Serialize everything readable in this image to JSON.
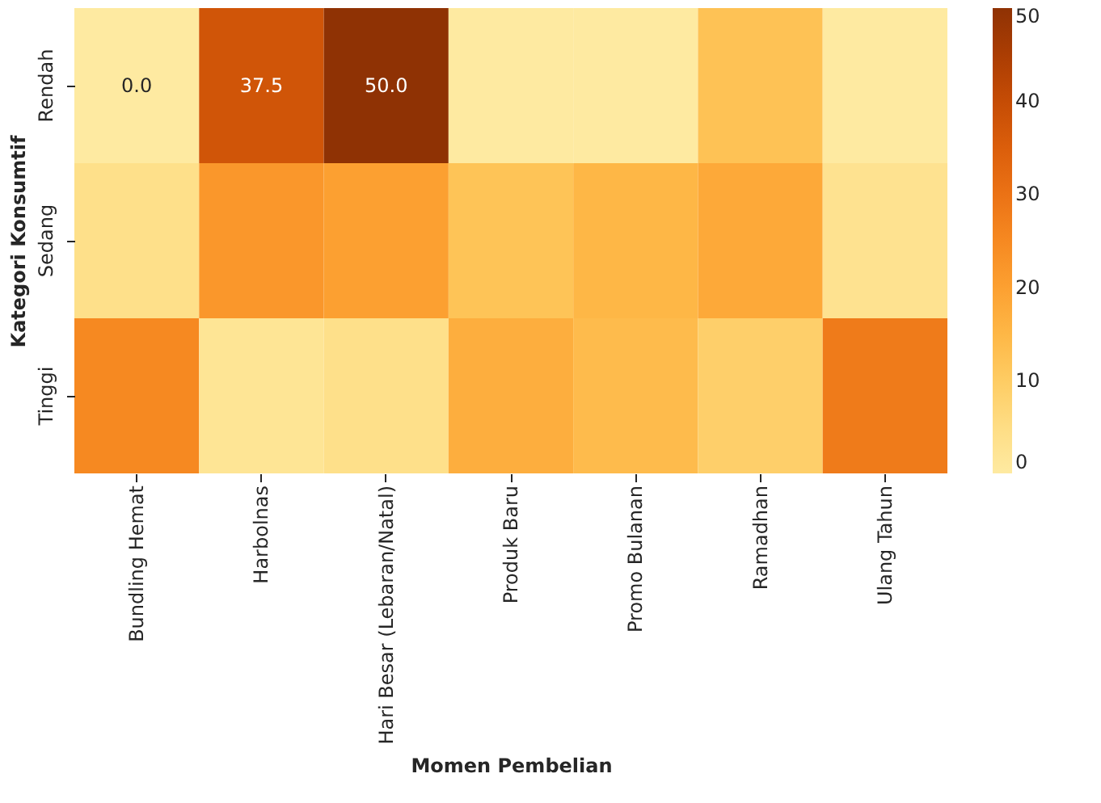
{
  "chart_data": {
    "type": "heatmap",
    "xlabel": "Momen Pembelian",
    "ylabel": "Kategori Konsumtif",
    "categories": [
      "Bundling Hemat",
      "Harbolnas",
      "Hari Besar (Lebaran/Natal)",
      "Produk Baru",
      "Promo Bulanan",
      "Ramadhan",
      "Ulang Tahun"
    ],
    "y_categories": [
      "Rendah",
      "Sedang",
      "Tinggi"
    ],
    "cells": [
      [
        0.0,
        37.5,
        50.0,
        0,
        0,
        12.5,
        0
      ],
      [
        4,
        22,
        20,
        12,
        15,
        18,
        3
      ],
      [
        25,
        2,
        4,
        17,
        14,
        9,
        28
      ]
    ],
    "cell_labels": [
      [
        "0.0",
        "37.5",
        "50.0",
        null,
        null,
        null,
        null
      ],
      [
        null,
        null,
        null,
        null,
        null,
        null,
        null
      ],
      [
        null,
        null,
        null,
        null,
        null,
        null,
        null
      ]
    ],
    "clim": [
      0,
      50
    ],
    "cticks": [
      0,
      10,
      20,
      30,
      40,
      50
    ]
  }
}
